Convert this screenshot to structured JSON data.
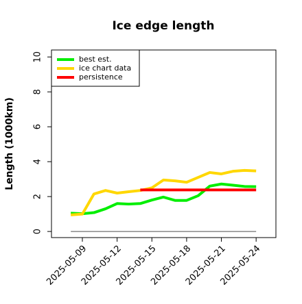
{
  "chart_data": {
    "type": "line",
    "title": "Ice edge length",
    "y_label": "Length (1000km)",
    "x": [
      "2025-05-08",
      "2025-05-09",
      "2025-05-10",
      "2025-05-11",
      "2025-05-12",
      "2025-05-13",
      "2025-05-14",
      "2025-05-15",
      "2025-05-16",
      "2025-05-17",
      "2025-05-18",
      "2025-05-19",
      "2025-05-20",
      "2025-05-21",
      "2025-05-22",
      "2025-05-23",
      "2025-05-24"
    ],
    "series": [
      {
        "name": "best est.",
        "color": "#00ee00",
        "values": [
          1.05,
          1.02,
          1.08,
          1.3,
          1.6,
          1.57,
          1.6,
          1.8,
          1.97,
          1.78,
          1.78,
          2.05,
          2.6,
          2.72,
          2.65,
          2.58,
          2.57
        ]
      },
      {
        "name": "ice chart data",
        "color": "#ffd700",
        "values": [
          0.95,
          1.0,
          2.15,
          2.35,
          2.2,
          2.28,
          2.35,
          2.5,
          2.95,
          2.9,
          2.82,
          3.1,
          3.38,
          3.3,
          3.45,
          3.5,
          3.47
        ]
      },
      {
        "name": "persistence",
        "color": "#ff0000",
        "values": [
          null,
          null,
          null,
          null,
          null,
          null,
          2.38,
          2.38,
          2.38,
          2.38,
          2.38,
          2.38,
          2.38,
          2.38,
          2.38,
          2.38,
          2.38
        ]
      }
    ],
    "reference_line": {
      "y": 0,
      "color": "#888888"
    },
    "xlim": [
      "2025-05-06T08:00",
      "2025-05-25T17:00"
    ],
    "xticks": [
      "2025-05-09",
      "2025-05-12",
      "2025-05-15",
      "2025-05-18",
      "2025-05-21",
      "2025-05-24"
    ],
    "ylim": [
      -0.35,
      10.4
    ],
    "yticks": [
      0,
      2,
      4,
      6,
      8,
      10
    ],
    "legend": "upper left"
  }
}
